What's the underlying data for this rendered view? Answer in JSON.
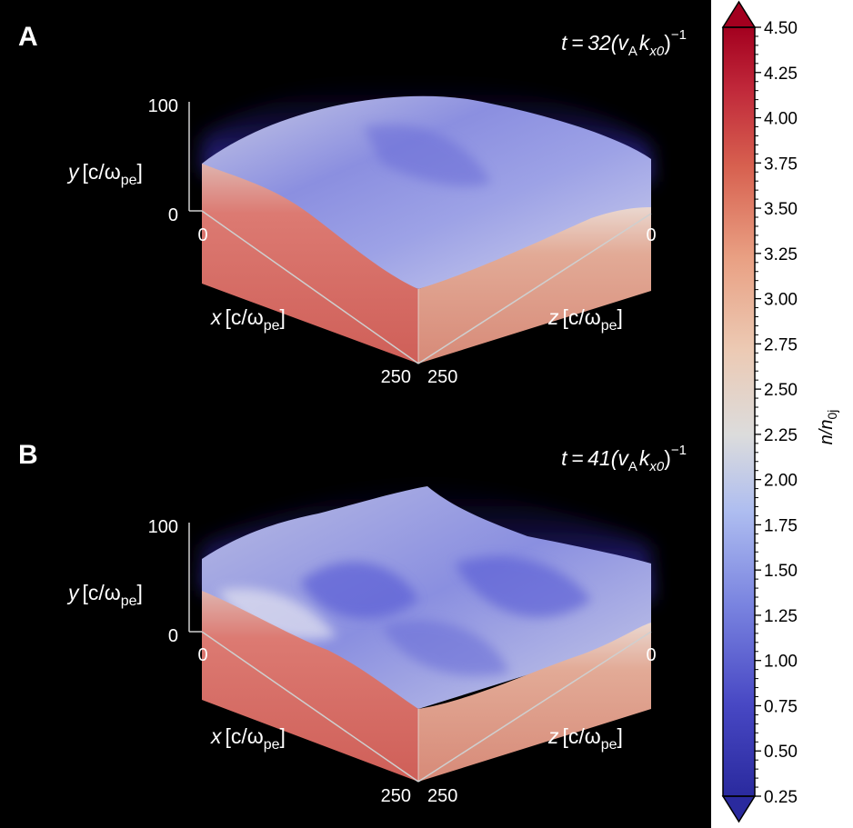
{
  "chart_data": [
    {
      "type": "heatmap",
      "panel": "A",
      "time_label": {
        "prefix": "t = 32(",
        "v": "v",
        "vsub": "A",
        "k": "k",
        "ksub": "x0",
        "close": ")",
        "exp": "−1"
      },
      "axes": {
        "y": {
          "label": "y",
          "unit": "[c/ω",
          "unit_sub": "pe",
          "unit_close": "]",
          "ticks": [
            "100",
            "0"
          ],
          "range": [
            0,
            100
          ]
        },
        "x": {
          "label": "x",
          "unit": "[c/ω",
          "unit_sub": "pe",
          "unit_close": "]",
          "ticks": [
            "0",
            "250"
          ],
          "range": [
            0,
            250
          ]
        },
        "z": {
          "label": "z",
          "unit": "[c/ω",
          "unit_sub": "pe",
          "unit_close": "]",
          "ticks": [
            "0",
            "250"
          ],
          "range": [
            0,
            250
          ]
        }
      }
    },
    {
      "type": "heatmap",
      "panel": "B",
      "time_label": {
        "prefix": "t = 41(",
        "v": "v",
        "vsub": "A",
        "k": "k",
        "ksub": "x0",
        "close": ")",
        "exp": "−1"
      },
      "axes": {
        "y": {
          "label": "y",
          "unit": "[c/ω",
          "unit_sub": "pe",
          "unit_close": "]",
          "ticks": [
            "100",
            "0"
          ],
          "range": [
            0,
            100
          ]
        },
        "x": {
          "label": "x",
          "unit": "[c/ω",
          "unit_sub": "pe",
          "unit_close": "]",
          "ticks": [
            "0",
            "250"
          ],
          "range": [
            0,
            250
          ]
        },
        "z": {
          "label": "z",
          "unit": "[c/ω",
          "unit_sub": "pe",
          "unit_close": "]",
          "ticks": [
            "0",
            "250"
          ],
          "range": [
            0,
            250
          ]
        }
      }
    }
  ],
  "colorbar": {
    "label_main": "n/n",
    "label_sub": "0j",
    "range": [
      0.25,
      4.5
    ],
    "ticks": [
      "4.50",
      "4.25",
      "4.00",
      "3.75",
      "3.50",
      "3.25",
      "3.00",
      "2.75",
      "2.50",
      "2.25",
      "2.00",
      "1.75",
      "1.50",
      "1.25",
      "1.00",
      "0.75",
      "0.50",
      "0.25"
    ],
    "extend": "both",
    "colors": {
      "low": "#2a2aa0",
      "mid": "#dcdcdc",
      "high": "#a3001f"
    }
  }
}
